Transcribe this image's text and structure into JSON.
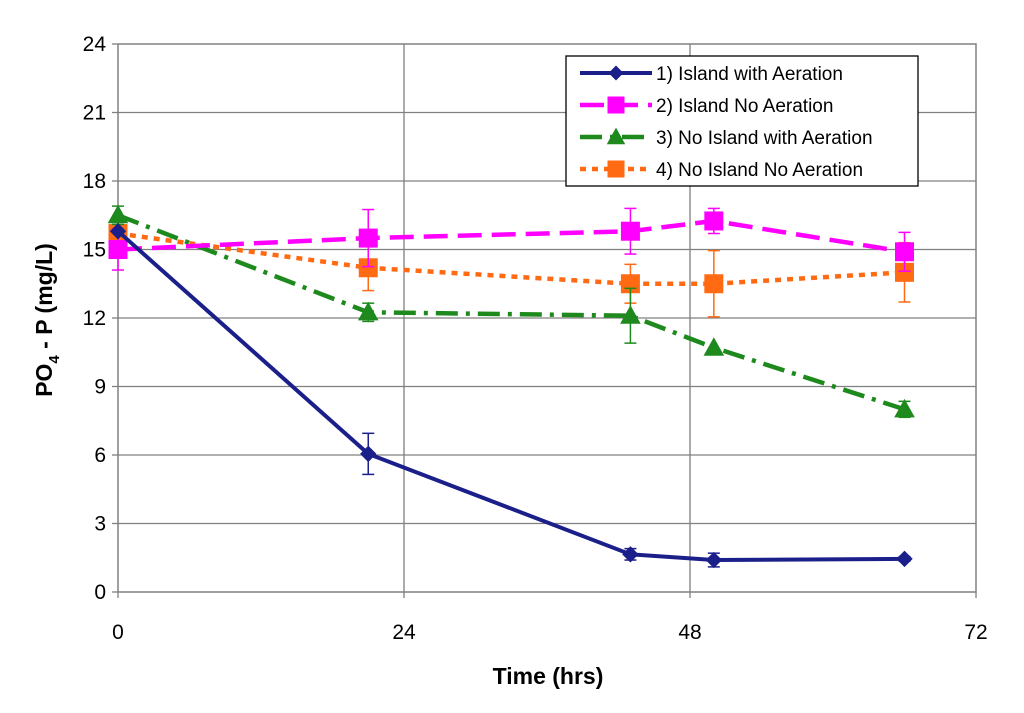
{
  "chart_data": {
    "type": "line",
    "xlabel": "Time (hrs)",
    "ylabel_main": "PO",
    "ylabel_sub": "4",
    "ylabel_rest": " - P (mg/L)",
    "xlim": [
      0,
      72
    ],
    "ylim": [
      0,
      24
    ],
    "xticks": [
      0,
      24,
      48,
      72
    ],
    "yticks": [
      0,
      3,
      6,
      9,
      12,
      15,
      18,
      21,
      24
    ],
    "grid": true,
    "legend_position": "top-right",
    "series": [
      {
        "name": "1) Island with Aeration",
        "color": "#1b1f8a",
        "marker": "diamond",
        "dash": "solid",
        "points": [
          {
            "x": 0,
            "y": 15.8,
            "err": null
          },
          {
            "x": 21,
            "y": 6.05,
            "err": 0.9
          },
          {
            "x": 43,
            "y": 1.65,
            "err": 0.25
          },
          {
            "x": 50,
            "y": 1.4,
            "err": 0.3
          },
          {
            "x": 66,
            "y": 1.45,
            "err": 0.1
          }
        ]
      },
      {
        "name": "2) Island No Aeration",
        "color": "#ff00ff",
        "marker": "square",
        "dash": "long-dash",
        "points": [
          {
            "x": 0,
            "y": 15.0,
            "err": 0.9
          },
          {
            "x": 21,
            "y": 15.5,
            "err": 1.25
          },
          {
            "x": 43,
            "y": 15.8,
            "err": 1.0
          },
          {
            "x": 50,
            "y": 16.25,
            "err": 0.55
          },
          {
            "x": 66,
            "y": 14.9,
            "err": 0.85
          }
        ]
      },
      {
        "name": "3) No Island with Aeration",
        "color": "#1e8a1e",
        "marker": "triangle",
        "dash": "dash-dot",
        "points": [
          {
            "x": 0,
            "y": 16.5,
            "err": 0.4
          },
          {
            "x": 21,
            "y": 12.25,
            "err": 0.4
          },
          {
            "x": 43,
            "y": 12.1,
            "err": 1.2
          },
          {
            "x": 50,
            "y": 10.7,
            "err": null
          },
          {
            "x": 66,
            "y": 8.0,
            "err": 0.35
          }
        ]
      },
      {
        "name": "4) No Island No Aeration",
        "color": "#ff6a13",
        "marker": "square",
        "dash": "dotted",
        "points": [
          {
            "x": 0,
            "y": 15.7,
            "err": null
          },
          {
            "x": 21,
            "y": 14.2,
            "err": 1.0
          },
          {
            "x": 43,
            "y": 13.5,
            "err": 0.85
          },
          {
            "x": 50,
            "y": 13.5,
            "err": 1.45
          },
          {
            "x": 66,
            "y": 14.0,
            "err": 1.3
          }
        ]
      }
    ]
  }
}
